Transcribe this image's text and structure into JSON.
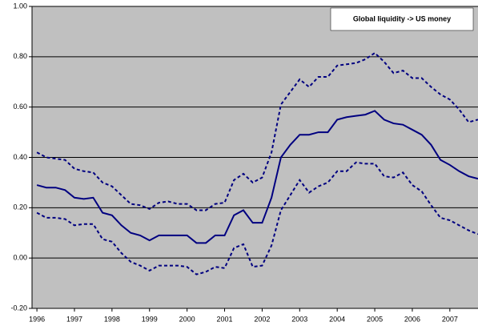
{
  "chart_data": {
    "type": "line",
    "annotation": "Global liquidity -> US money",
    "x": [
      1996,
      1996.25,
      1996.5,
      1996.75,
      1997,
      1997.25,
      1997.5,
      1997.75,
      1998,
      1998.25,
      1998.5,
      1998.75,
      1999,
      1999.25,
      1999.5,
      1999.75,
      2000,
      2000.25,
      2000.5,
      2000.75,
      2001,
      2001.25,
      2001.5,
      2001.75,
      2002,
      2002.25,
      2002.5,
      2002.75,
      2003,
      2003.25,
      2003.5,
      2003.75,
      2004,
      2004.25,
      2004.5,
      2004.75,
      2005,
      2005.25,
      2005.5,
      2005.75,
      2006,
      2006.25,
      2006.5,
      2006.75,
      2007,
      2007.25,
      2007.5,
      2007.75
    ],
    "series": [
      {
        "color": "#000080",
        "style": "solid",
        "values": [
          0.29,
          0.28,
          0.28,
          0.27,
          0.24,
          0.235,
          0.24,
          0.18,
          0.17,
          0.13,
          0.1,
          0.09,
          0.07,
          0.09,
          0.09,
          0.09,
          0.09,
          0.06,
          0.06,
          0.09,
          0.09,
          0.17,
          0.19,
          0.14,
          0.14,
          0.24,
          0.4,
          0.45,
          0.49,
          0.49,
          0.5,
          0.5,
          0.55,
          0.56,
          0.565,
          0.57,
          0.585,
          0.55,
          0.535,
          0.53,
          0.51,
          0.49,
          0.45,
          0.39,
          0.37,
          0.345,
          0.325,
          0.315
        ]
      },
      {
        "color": "#000080",
        "style": "dashed",
        "values": [
          0.42,
          0.4,
          0.395,
          0.39,
          0.355,
          0.345,
          0.34,
          0.3,
          0.285,
          0.25,
          0.215,
          0.21,
          0.195,
          0.22,
          0.225,
          0.215,
          0.215,
          0.19,
          0.19,
          0.215,
          0.22,
          0.31,
          0.335,
          0.3,
          0.32,
          0.42,
          0.61,
          0.66,
          0.71,
          0.68,
          0.72,
          0.72,
          0.765,
          0.77,
          0.775,
          0.79,
          0.815,
          0.78,
          0.735,
          0.745,
          0.715,
          0.715,
          0.68,
          0.65,
          0.63,
          0.59,
          0.54,
          0.55
        ]
      },
      {
        "color": "#000080",
        "style": "dashed",
        "values": [
          0.18,
          0.16,
          0.16,
          0.155,
          0.13,
          0.135,
          0.135,
          0.075,
          0.065,
          0.02,
          -0.015,
          -0.03,
          -0.05,
          -0.03,
          -0.03,
          -0.03,
          -0.035,
          -0.065,
          -0.055,
          -0.035,
          -0.04,
          0.04,
          0.055,
          -0.035,
          -0.03,
          0.05,
          0.19,
          0.25,
          0.31,
          0.26,
          0.285,
          0.3,
          0.345,
          0.345,
          0.38,
          0.375,
          0.375,
          0.325,
          0.32,
          0.34,
          0.29,
          0.265,
          0.21,
          0.16,
          0.15,
          0.13,
          0.11,
          0.095
        ]
      }
    ],
    "xlim": [
      1995.87,
      2007.75
    ],
    "xticks": [
      1996,
      1997,
      1998,
      1999,
      2000,
      2001,
      2002,
      2003,
      2004,
      2005,
      2006,
      2007
    ],
    "ylim": [
      -0.2,
      1.0
    ],
    "yticks": [
      {
        "value": -0.2,
        "label": "-0.20"
      },
      {
        "value": 0,
        "label": "0.00"
      },
      {
        "value": 0.2,
        "label": "0.20"
      },
      {
        "value": 0.4,
        "label": "0.40"
      },
      {
        "value": 0.6,
        "label": "0.60"
      },
      {
        "value": 0.8,
        "label": "0.80"
      },
      {
        "value": 1.0,
        "label": "1.00"
      }
    ],
    "grid": true,
    "plot_background": "#c0c0c0"
  }
}
